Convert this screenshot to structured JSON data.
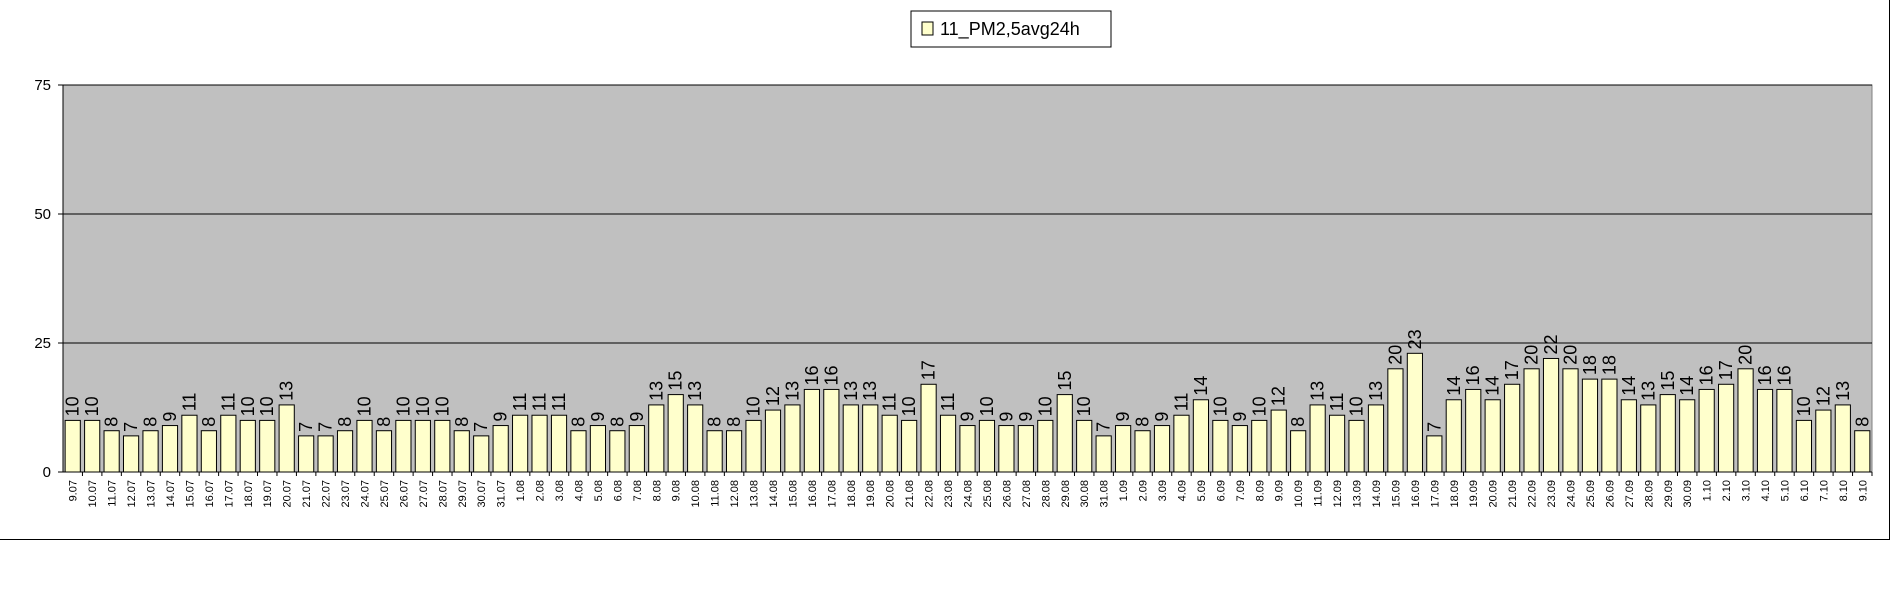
{
  "chart_data": {
    "type": "bar",
    "title": "",
    "xlabel": "",
    "ylabel": "",
    "ylim": [
      0,
      75
    ],
    "yticks": [
      0,
      25,
      50,
      75
    ],
    "grid": true,
    "legend_position": "top-center",
    "colors": {
      "plot_bg": "#c0c0c0",
      "bar_fill": "#ffffcc",
      "bar_stroke": "#000000",
      "gridline": "#000000"
    },
    "categories": [
      "9.07",
      "10.07",
      "11.07",
      "12.07",
      "13.07",
      "14.07",
      "15.07",
      "16.07",
      "17.07",
      "18.07",
      "19.07",
      "20.07",
      "21.07",
      "22.07",
      "23.07",
      "24.07",
      "25.07",
      "26.07",
      "27.07",
      "28.07",
      "29.07",
      "30.07",
      "31.07",
      "1.08",
      "2.08",
      "3.08",
      "4.08",
      "5.08",
      "6.08",
      "7.08",
      "8.08",
      "9.08",
      "10.08",
      "11.08",
      "12.08",
      "13.08",
      "14.08",
      "15.08",
      "16.08",
      "17.08",
      "18.08",
      "19.08",
      "20.08",
      "21.08",
      "22.08",
      "23.08",
      "24.08",
      "25.08",
      "26.08",
      "27.08",
      "28.08",
      "29.08",
      "30.08",
      "31.08",
      "1.09",
      "2.09",
      "3.09",
      "4.09",
      "5.09",
      "6.09",
      "7.09",
      "8.09",
      "9.09",
      "10.09",
      "11.09",
      "12.09",
      "13.09",
      "14.09",
      "15.09",
      "16.09",
      "17.09",
      "18.09",
      "19.09",
      "20.09",
      "21.09",
      "22.09",
      "23.09",
      "24.09",
      "25.09",
      "26.09",
      "27.09",
      "28.09",
      "29.09",
      "30.09",
      "1.10",
      "2.10",
      "3.10",
      "4.10",
      "5.10",
      "6.10",
      "7.10",
      "8.10",
      "9.10"
    ],
    "series": [
      {
        "name": "11_PM2,5avg24h",
        "values": [
          10,
          10,
          8,
          7,
          8,
          9,
          11,
          8,
          11,
          10,
          10,
          13,
          7,
          7,
          8,
          10,
          8,
          10,
          10,
          10,
          8,
          7,
          9,
          11,
          11,
          11,
          8,
          9,
          8,
          9,
          13,
          15,
          13,
          8,
          8,
          10,
          12,
          13,
          16,
          16,
          13,
          13,
          11,
          10,
          17,
          11,
          9,
          10,
          9,
          9,
          10,
          15,
          10,
          7,
          9,
          8,
          9,
          11,
          14,
          10,
          9,
          10,
          12,
          8,
          13,
          11,
          10,
          13,
          20,
          23,
          7,
          14,
          16,
          14,
          17,
          20,
          22,
          20,
          18,
          18,
          14,
          13,
          15,
          14,
          16,
          17,
          20,
          16,
          16,
          10,
          12,
          13,
          8
        ]
      }
    ]
  }
}
